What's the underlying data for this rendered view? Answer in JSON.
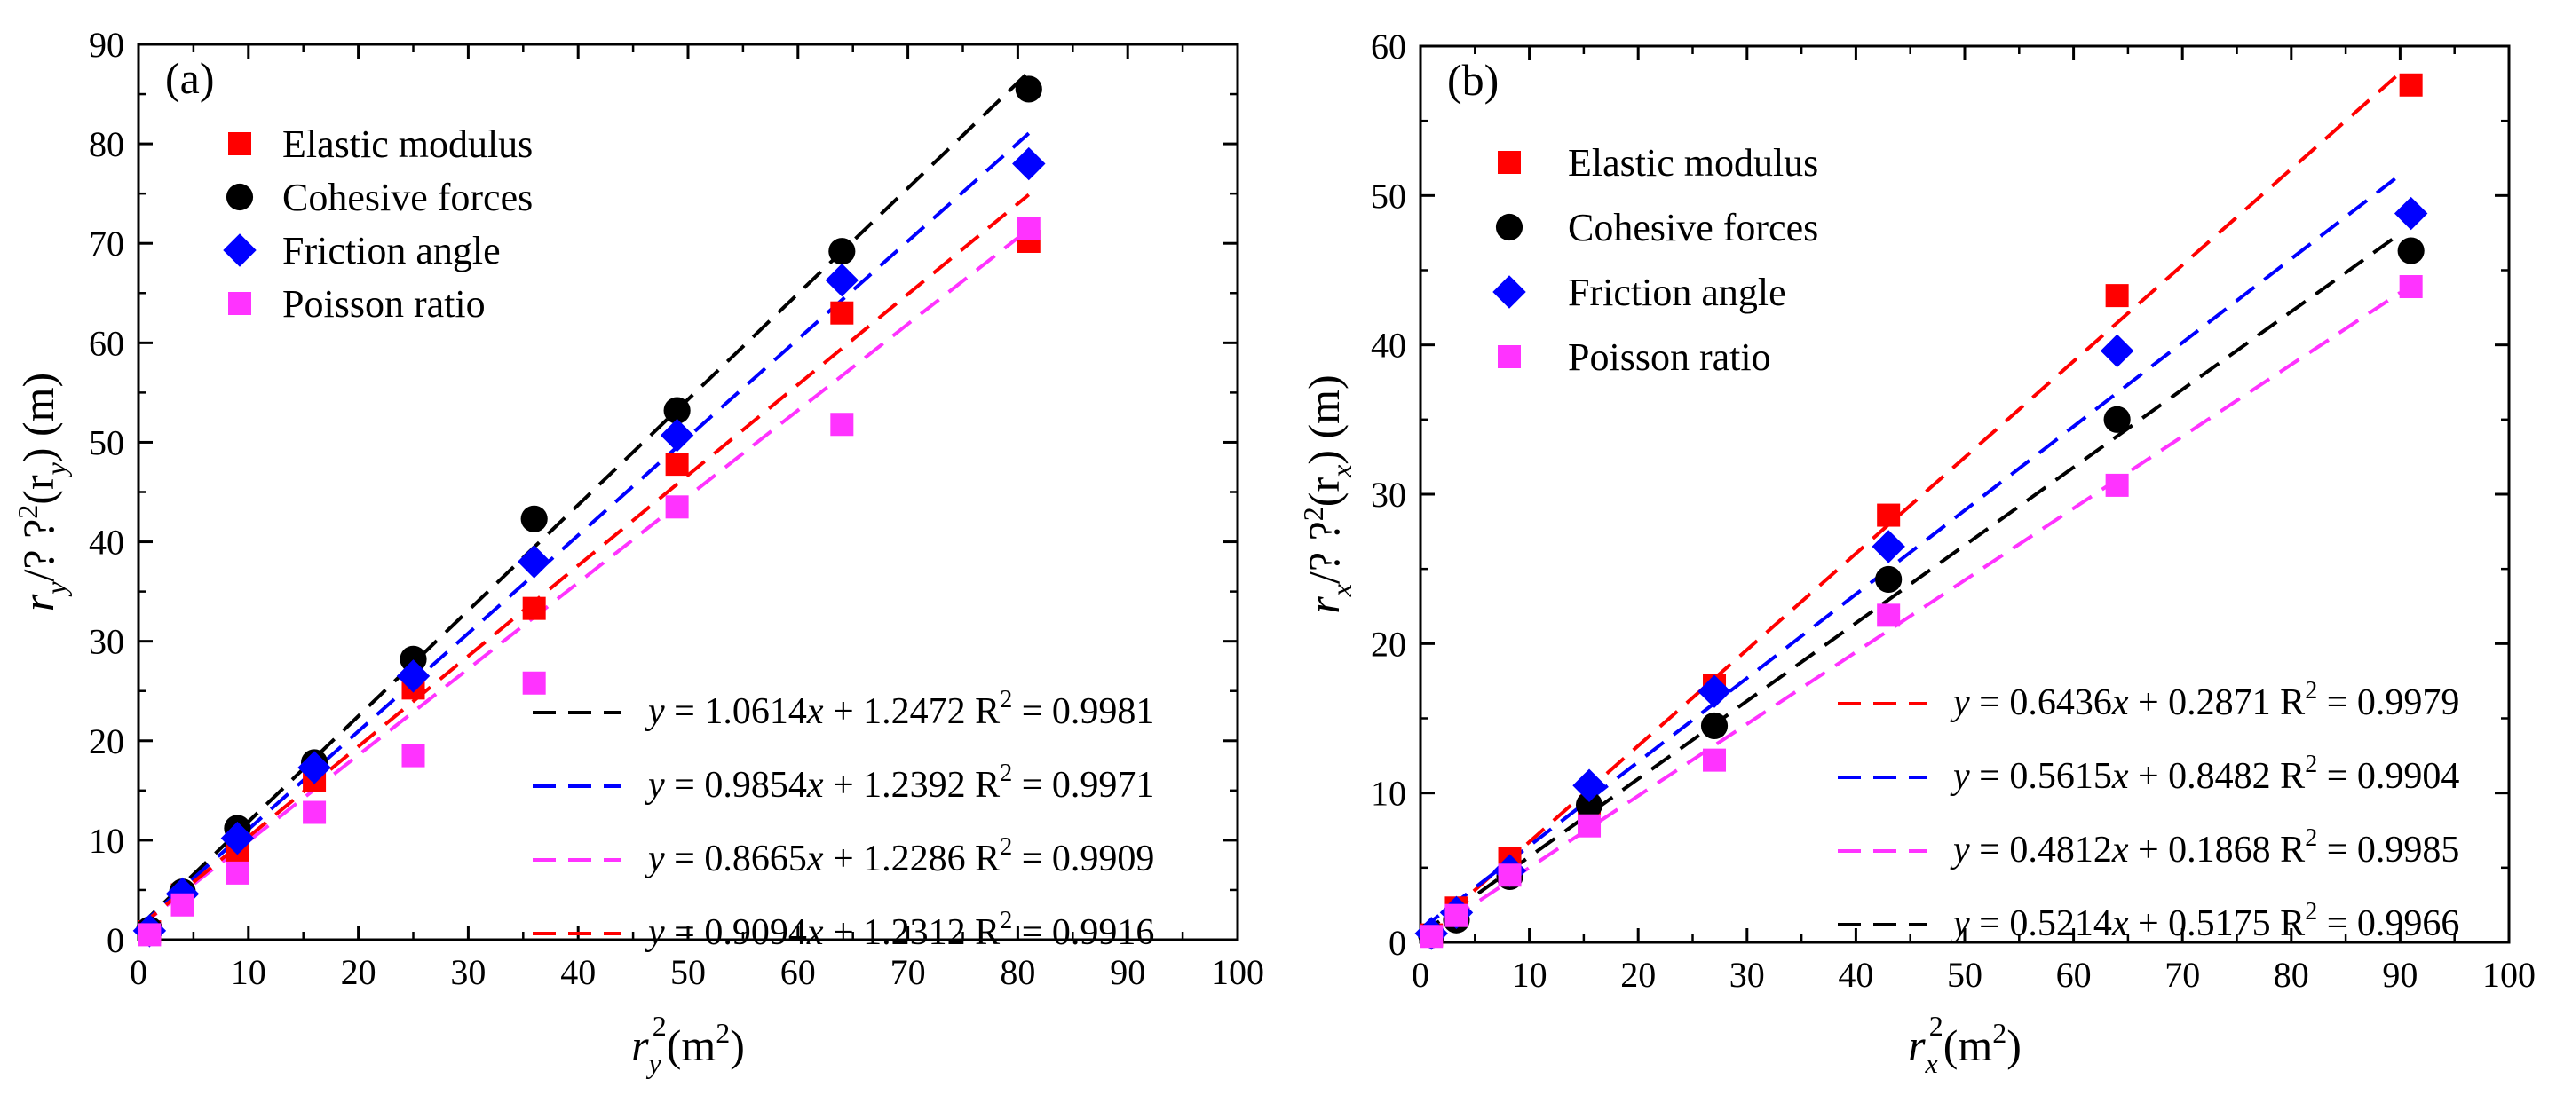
{
  "chart_data": [
    {
      "type": "scatter",
      "panel_label": "(a)",
      "xlabel": {
        "base": "r",
        "sub": "y",
        "sup": "2",
        "unit": "(m",
        "unit_sup": "2",
        "unit_close": ")"
      },
      "ylabel": {
        "p1": "r",
        "s1": "y",
        "p2": "/? ",
        "p3": "?",
        "s3": "2",
        "p4": "(r",
        "s4": "y",
        "p5": ") (m)"
      },
      "xlim": [
        0,
        100
      ],
      "ylim": [
        0,
        90
      ],
      "xticks": [
        0,
        10,
        20,
        30,
        40,
        50,
        60,
        70,
        80,
        90,
        100
      ],
      "yticks": [
        0,
        10,
        20,
        30,
        40,
        50,
        60,
        70,
        80,
        90
      ],
      "legend_position": "top-left",
      "series": [
        {
          "name": "Elastic modulus",
          "marker": "square",
          "color": "#ff0000",
          "x": [
            1,
            4,
            9,
            16,
            25,
            36,
            49,
            64,
            81
          ],
          "y": [
            0.8,
            4.5,
            8.8,
            16.0,
            25.3,
            33.3,
            47.8,
            63.0,
            70.2
          ]
        },
        {
          "name": "Cohesive forces",
          "marker": "circle",
          "color": "#000000",
          "x": [
            1,
            4,
            9,
            16,
            25,
            36,
            49,
            64,
            81
          ],
          "y": [
            1.0,
            4.8,
            11.2,
            17.8,
            28.2,
            42.3,
            53.2,
            69.2,
            85.5
          ]
        },
        {
          "name": "Friction angle",
          "marker": "diamond",
          "color": "#0000ff",
          "x": [
            1,
            4,
            9,
            16,
            25,
            36,
            49,
            64,
            81
          ],
          "y": [
            0.9,
            4.6,
            10.2,
            17.3,
            26.5,
            38.0,
            50.7,
            66.3,
            78.0
          ]
        },
        {
          "name": "Poisson ratio",
          "marker": "square",
          "color": "#ff33ff",
          "x": [
            1,
            4,
            9,
            16,
            25,
            36,
            49,
            64,
            81
          ],
          "y": [
            0.5,
            3.5,
            6.7,
            12.8,
            18.5,
            25.8,
            43.5,
            51.8,
            71.5
          ]
        }
      ],
      "fits": [
        {
          "color": "#000000",
          "slope": 1.0614,
          "intercept": 1.2472,
          "x_range": [
            0,
            81
          ],
          "y_label": "y",
          "eq": " = 1.0614",
          "x_label": "x",
          "rest": " + 1.2472  R",
          "r2_sup": "2",
          "r2": " = 0.9981"
        },
        {
          "color": "#0000ff",
          "slope": 0.9854,
          "intercept": 1.2392,
          "x_range": [
            0,
            81
          ],
          "y_label": "y",
          "eq": " = 0.9854",
          "x_label": "x",
          "rest": " + 1.2392  R",
          "r2_sup": "2",
          "r2": " = 0.9971"
        },
        {
          "color": "#ff33ff",
          "slope": 0.8665,
          "intercept": 1.2286,
          "x_range": [
            0,
            81
          ],
          "y_label": "y",
          "eq": " = 0.8665",
          "x_label": "x",
          "rest": " + 1.2286  R",
          "r2_sup": "2",
          "r2": " = 0.9909"
        },
        {
          "color": "#ff0000",
          "slope": 0.9094,
          "intercept": 1.2312,
          "x_range": [
            0,
            81
          ],
          "y_label": "y",
          "eq": " = 0.9094",
          "x_label": "x",
          "rest": " + 1.2312  R",
          "r2_sup": "2",
          "r2": " = 0.9916"
        }
      ]
    },
    {
      "type": "scatter",
      "panel_label": "(b)",
      "xlabel": {
        "base": "r",
        "sub": "x",
        "sup": "2",
        "unit": "(m",
        "unit_sup": "2",
        "unit_close": ")"
      },
      "ylabel": {
        "p1": "r",
        "s1": "x",
        "p2": "/? ",
        "p3": "?",
        "s3": "2",
        "p4": "(r",
        "s4": "x",
        "p5": ") (m)"
      },
      "xlim": [
        0,
        100
      ],
      "ylim": [
        0,
        60
      ],
      "xticks": [
        0,
        10,
        20,
        30,
        40,
        50,
        60,
        70,
        80,
        90,
        100
      ],
      "yticks": [
        0,
        10,
        20,
        30,
        40,
        50,
        60
      ],
      "legend_position": "top-left",
      "series": [
        {
          "name": "Elastic modulus",
          "marker": "square",
          "color": "#ff0000",
          "x": [
            1,
            3.3,
            8.2,
            15.5,
            27,
            43,
            64,
            91
          ],
          "y": [
            0.5,
            2.3,
            5.6,
            8.9,
            17.2,
            28.6,
            43.3,
            57.4
          ]
        },
        {
          "name": "Cohesive forces",
          "marker": "circle",
          "color": "#000000",
          "x": [
            1,
            3.3,
            8.2,
            15.5,
            27,
            43,
            64,
            91
          ],
          "y": [
            0.5,
            1.5,
            4.4,
            9.2,
            14.5,
            24.3,
            35.0,
            46.3
          ]
        },
        {
          "name": "Friction angle",
          "marker": "diamond",
          "color": "#0000ff",
          "x": [
            1,
            3.3,
            8.2,
            15.5,
            27,
            43,
            64,
            91
          ],
          "y": [
            0.6,
            2.0,
            4.8,
            10.5,
            16.8,
            26.5,
            39.6,
            48.8
          ]
        },
        {
          "name": "Poisson ratio",
          "marker": "square",
          "color": "#ff33ff",
          "x": [
            1,
            3.3,
            8.2,
            15.5,
            27,
            43,
            64,
            91
          ],
          "y": [
            0.4,
            1.8,
            4.5,
            7.8,
            12.2,
            21.9,
            30.6,
            43.9
          ]
        }
      ],
      "fits": [
        {
          "color": "#ff0000",
          "slope": 0.6436,
          "intercept": 0.2871,
          "x_range": [
            0,
            90
          ],
          "y_label": "y",
          "eq": " = 0.6436",
          "x_label": "x",
          "rest": " + 0.2871  R",
          "r2_sup": "2",
          "r2": " = 0.9979"
        },
        {
          "color": "#0000ff",
          "slope": 0.5615,
          "intercept": 0.8482,
          "x_range": [
            0,
            90
          ],
          "y_label": "y",
          "eq": " = 0.5615",
          "x_label": "x",
          "rest": " + 0.8482  R",
          "r2_sup": "2",
          "r2": " = 0.9904"
        },
        {
          "color": "#ff33ff",
          "slope": 0.4812,
          "intercept": 0.1868,
          "x_range": [
            0,
            90
          ],
          "y_label": "y",
          "eq": " = 0.4812",
          "x_label": "x",
          "rest": " + 0.1868  R",
          "r2_sup": "2",
          "r2": " = 0.9985"
        },
        {
          "color": "#000000",
          "slope": 0.5214,
          "intercept": 0.5175,
          "x_range": [
            0,
            90
          ],
          "y_label": "y",
          "eq": " = 0.5214",
          "x_label": "x",
          "rest": " + 0.5175  R",
          "r2_sup": "2",
          "r2": " = 0.9966"
        }
      ]
    }
  ]
}
